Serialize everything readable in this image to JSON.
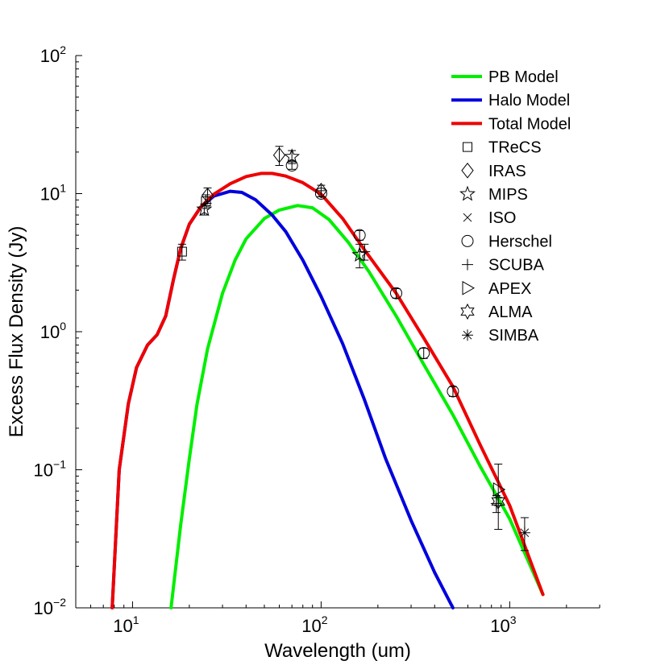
{
  "chart_data": {
    "type": "scatter",
    "scale": {
      "x": "log",
      "y": "log"
    },
    "xlabel": "Wavelength (um)",
    "ylabel": "Excess Flux Density (Jy)",
    "xlim": [
      5,
      3000
    ],
    "ylim": [
      0.01,
      100
    ],
    "x_ticks": [
      {
        "base": "10",
        "exp": "1",
        "value": 10
      },
      {
        "base": "10",
        "exp": "2",
        "value": 100
      },
      {
        "base": "10",
        "exp": "3",
        "value": 1000
      }
    ],
    "y_ticks": [
      {
        "base": "10",
        "exp": "−2",
        "value": 0.01
      },
      {
        "base": "10",
        "exp": "−1",
        "value": 0.1
      },
      {
        "base": "10",
        "exp": "0",
        "value": 1
      },
      {
        "base": "10",
        "exp": "1",
        "value": 10
      },
      {
        "base": "10",
        "exp": "2",
        "value": 100
      }
    ],
    "models": [
      {
        "name": "PB Model",
        "color": "#00ee00",
        "points": [
          [
            16,
            0.01
          ],
          [
            18,
            0.04
          ],
          [
            20,
            0.12
          ],
          [
            22,
            0.3
          ],
          [
            25,
            0.75
          ],
          [
            30,
            1.9
          ],
          [
            35,
            3.3
          ],
          [
            40,
            4.7
          ],
          [
            50,
            6.6
          ],
          [
            60,
            7.6
          ],
          [
            75,
            8.2
          ],
          [
            90,
            7.9
          ],
          [
            110,
            6.5
          ],
          [
            140,
            4.4
          ],
          [
            180,
            2.7
          ],
          [
            250,
            1.3
          ],
          [
            350,
            0.58
          ],
          [
            500,
            0.25
          ],
          [
            700,
            0.105
          ],
          [
            1000,
            0.044
          ],
          [
            1500,
            0.0125
          ]
        ]
      },
      {
        "name": "Halo Model",
        "color": "#0000dd",
        "points": [
          [
            7.8,
            0.01
          ],
          [
            8.5,
            0.1
          ],
          [
            9.5,
            0.3
          ],
          [
            10.5,
            0.55
          ],
          [
            12,
            0.8
          ],
          [
            13.5,
            0.95
          ],
          [
            15,
            1.3
          ],
          [
            16.5,
            2.4
          ],
          [
            18,
            4.0
          ],
          [
            20,
            6.0
          ],
          [
            23,
            8.0
          ],
          [
            27,
            9.6
          ],
          [
            33,
            10.4
          ],
          [
            38,
            10.2
          ],
          [
            45,
            9.0
          ],
          [
            55,
            7.0
          ],
          [
            65,
            5.3
          ],
          [
            80,
            3.3
          ],
          [
            100,
            1.8
          ],
          [
            130,
            0.82
          ],
          [
            170,
            0.32
          ],
          [
            220,
            0.12
          ],
          [
            300,
            0.043
          ],
          [
            400,
            0.018
          ],
          [
            500,
            0.01
          ]
        ]
      },
      {
        "name": "Total Model",
        "color": "#ee0000",
        "points": [
          [
            7.8,
            0.01
          ],
          [
            8.5,
            0.1
          ],
          [
            9.5,
            0.3
          ],
          [
            10.5,
            0.55
          ],
          [
            12,
            0.8
          ],
          [
            13.5,
            0.95
          ],
          [
            15,
            1.3
          ],
          [
            16.5,
            2.4
          ],
          [
            18,
            4.0
          ],
          [
            20,
            6.0
          ],
          [
            23,
            8.0
          ],
          [
            27,
            9.9
          ],
          [
            33,
            11.8
          ],
          [
            40,
            13.3
          ],
          [
            48,
            14.0
          ],
          [
            55,
            14.0
          ],
          [
            65,
            13.4
          ],
          [
            80,
            12.0
          ],
          [
            100,
            9.9
          ],
          [
            130,
            6.6
          ],
          [
            170,
            3.9
          ],
          [
            250,
            1.9
          ],
          [
            350,
            0.9
          ],
          [
            500,
            0.4
          ],
          [
            700,
            0.15
          ],
          [
            1000,
            0.055
          ],
          [
            1500,
            0.0125
          ]
        ]
      }
    ],
    "observations": [
      {
        "name": "TReCS",
        "marker": "square",
        "points": [
          {
            "x": 18.3,
            "y": 3.8,
            "lo": 3.3,
            "hi": 4.3
          },
          {
            "x": 24.5,
            "y": 8.8,
            "lo": 7.8,
            "hi": 9.8
          }
        ]
      },
      {
        "name": "IRAS",
        "marker": "diamond",
        "points": [
          {
            "x": 25,
            "y": 9.7,
            "lo": 8.5,
            "hi": 11
          },
          {
            "x": 60,
            "y": 19,
            "lo": 16,
            "hi": 22
          },
          {
            "x": 100,
            "y": 10.5,
            "lo": 9.5,
            "hi": 11.5
          }
        ]
      },
      {
        "name": "MIPS",
        "marker": "star",
        "points": [
          {
            "x": 24,
            "y": 7.7,
            "lo": 7.0,
            "hi": 8.4
          },
          {
            "x": 70,
            "y": 18.5,
            "lo": 16.5,
            "hi": 20.5
          },
          {
            "x": 160,
            "y": 3.6,
            "lo": 2.9,
            "hi": 4.3
          }
        ]
      },
      {
        "name": "ISO",
        "marker": "x",
        "points": []
      },
      {
        "name": "Herschel",
        "marker": "circle",
        "points": [
          {
            "x": 70,
            "y": 16,
            "lo": 15,
            "hi": 17
          },
          {
            "x": 100,
            "y": 10,
            "lo": 9.5,
            "hi": 10.5
          },
          {
            "x": 160,
            "y": 5.0,
            "lo": 4.6,
            "hi": 5.4
          },
          {
            "x": 250,
            "y": 1.9,
            "lo": 1.75,
            "hi": 2.05
          },
          {
            "x": 350,
            "y": 0.7,
            "lo": 0.64,
            "hi": 0.76
          },
          {
            "x": 500,
            "y": 0.37,
            "lo": 0.34,
            "hi": 0.4
          }
        ]
      },
      {
        "name": "SCUBA",
        "marker": "plus",
        "points": [
          {
            "x": 170,
            "y": 3.8,
            "lo": 3.3,
            "hi": 4.3
          },
          {
            "x": 850,
            "y": 0.057,
            "lo": 0.049,
            "hi": 0.065
          }
        ]
      },
      {
        "name": "APEX",
        "marker": "triangle",
        "points": [
          {
            "x": 870,
            "y": 0.072,
            "lo": 0.037,
            "hi": 0.11
          }
        ]
      },
      {
        "name": "ALMA",
        "marker": "hexagram",
        "points": [
          {
            "x": 870,
            "y": 0.059,
            "lo": 0.055,
            "hi": 0.063
          }
        ]
      },
      {
        "name": "SIMBA",
        "marker": "asterisk",
        "points": [
          {
            "x": 1200,
            "y": 0.035,
            "lo": 0.026,
            "hi": 0.045
          }
        ]
      }
    ],
    "legend": {
      "position": "top-right",
      "lines": [
        {
          "label": "PB Model",
          "color": "#00ee00"
        },
        {
          "label": "Halo Model",
          "color": "#0000dd"
        },
        {
          "label": "Total Model",
          "color": "#ee0000"
        }
      ],
      "markers": [
        {
          "label": "TReCS",
          "marker": "square"
        },
        {
          "label": "IRAS",
          "marker": "diamond"
        },
        {
          "label": "MIPS",
          "marker": "star"
        },
        {
          "label": "ISO",
          "marker": "x"
        },
        {
          "label": "Herschel",
          "marker": "circle"
        },
        {
          "label": "SCUBA",
          "marker": "plus"
        },
        {
          "label": "APEX",
          "marker": "triangle"
        },
        {
          "label": "ALMA",
          "marker": "hexagram"
        },
        {
          "label": "SIMBA",
          "marker": "asterisk"
        }
      ]
    }
  }
}
